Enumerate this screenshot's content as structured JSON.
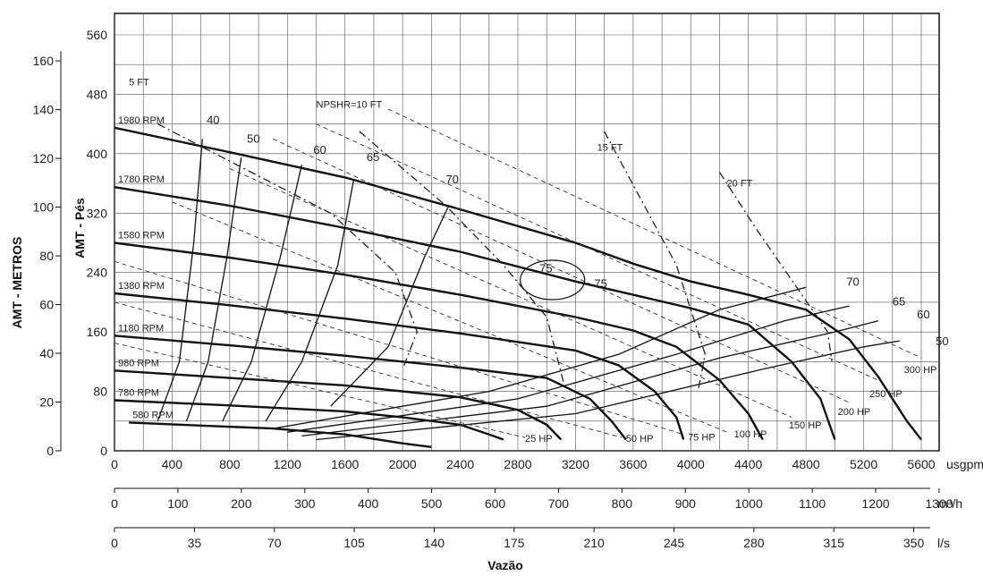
{
  "chart_data": {
    "type": "line",
    "title": "",
    "xlabel": "Vazão",
    "ylabel_left": "AMT - METROS",
    "ylabel_right": "AMT - Pés",
    "x_units": [
      "usgpm",
      "m³/h",
      "l/s"
    ],
    "x_ticks_usgpm": [
      "0",
      "400",
      "800",
      "1200",
      "1600",
      "2000",
      "2400",
      "2800",
      "3200",
      "3600",
      "4000",
      "4400",
      "4800",
      "5200",
      "5600"
    ],
    "x_ticks_m3h": [
      "0",
      "100",
      "200",
      "300",
      "400",
      "500",
      "600",
      "700",
      "800",
      "900",
      "1000",
      "1100",
      "1200",
      "1300"
    ],
    "x_ticks_ls": [
      "0",
      "35",
      "70",
      "105",
      "140",
      "175",
      "210",
      "245",
      "280",
      "315",
      "350"
    ],
    "y_ticks_feet": [
      "0",
      "80",
      "160",
      "240",
      "320",
      "400",
      "480",
      "560"
    ],
    "y_ticks_meters": [
      "0",
      "20",
      "40",
      "60",
      "80",
      "100",
      "120",
      "140",
      "160"
    ],
    "xlim_usgpm": [
      0,
      5600
    ],
    "ylim_feet": [
      0,
      560
    ],
    "grid": true,
    "speed_curves": [
      {
        "name": "1980 RPM",
        "points": [
          [
            0,
            435
          ],
          [
            800,
            402
          ],
          [
            1600,
            368
          ],
          [
            2400,
            325
          ],
          [
            3200,
            280
          ],
          [
            3600,
            252
          ],
          [
            4000,
            228
          ],
          [
            4400,
            210
          ],
          [
            4800,
            190
          ],
          [
            5100,
            150
          ],
          [
            5300,
            100
          ],
          [
            5500,
            40
          ],
          [
            5600,
            15
          ]
        ]
      },
      {
        "name": "1780 RPM",
        "points": [
          [
            0,
            355
          ],
          [
            800,
            330
          ],
          [
            1600,
            300
          ],
          [
            2400,
            268
          ],
          [
            3200,
            228
          ],
          [
            3600,
            210
          ],
          [
            4000,
            192
          ],
          [
            4400,
            170
          ],
          [
            4700,
            120
          ],
          [
            4900,
            70
          ],
          [
            5000,
            15
          ]
        ]
      },
      {
        "name": "1580 RPM",
        "points": [
          [
            0,
            280
          ],
          [
            800,
            260
          ],
          [
            1600,
            237
          ],
          [
            2400,
            210
          ],
          [
            3200,
            180
          ],
          [
            3600,
            162
          ],
          [
            3900,
            140
          ],
          [
            4200,
            95
          ],
          [
            4400,
            50
          ],
          [
            4500,
            15
          ]
        ]
      },
      {
        "name": "1380 RPM",
        "points": [
          [
            0,
            212
          ],
          [
            800,
            196
          ],
          [
            1600,
            178
          ],
          [
            2400,
            158
          ],
          [
            3200,
            135
          ],
          [
            3500,
            115
          ],
          [
            3750,
            80
          ],
          [
            3900,
            45
          ],
          [
            3950,
            15
          ]
        ]
      },
      {
        "name": "1180 RPM",
        "points": [
          [
            0,
            155
          ],
          [
            800,
            142
          ],
          [
            1600,
            128
          ],
          [
            2400,
            112
          ],
          [
            3000,
            98
          ],
          [
            3300,
            70
          ],
          [
            3450,
            40
          ],
          [
            3550,
            15
          ]
        ]
      },
      {
        "name": "980 RPM",
        "points": [
          [
            0,
            108
          ],
          [
            800,
            98
          ],
          [
            1600,
            88
          ],
          [
            2400,
            72
          ],
          [
            2800,
            55
          ],
          [
            3000,
            35
          ],
          [
            3100,
            15
          ]
        ]
      },
      {
        "name": "780 RPM",
        "points": [
          [
            0,
            68
          ],
          [
            800,
            61
          ],
          [
            1600,
            53
          ],
          [
            2000,
            45
          ],
          [
            2400,
            35
          ],
          [
            2600,
            22
          ],
          [
            2700,
            15
          ]
        ]
      },
      {
        "name": "580 RPM",
        "points": [
          [
            100,
            38
          ],
          [
            600,
            34
          ],
          [
            1100,
            30
          ],
          [
            1600,
            22
          ],
          [
            2000,
            10
          ],
          [
            2200,
            5
          ]
        ]
      }
    ],
    "efficiency_labels": [
      "40",
      "50",
      "60",
      "65",
      "70",
      "75",
      "75",
      "70",
      "65",
      "60",
      "50"
    ],
    "power_labels": [
      "25 HP",
      "50 HP",
      "75 HP",
      "100 HP",
      "150 HP",
      "200 HP",
      "250 HP",
      "300 HP"
    ],
    "npshr_labels": [
      "5 FT",
      "NPSHR=10 FT",
      "15 FT",
      "20 FT"
    ]
  }
}
